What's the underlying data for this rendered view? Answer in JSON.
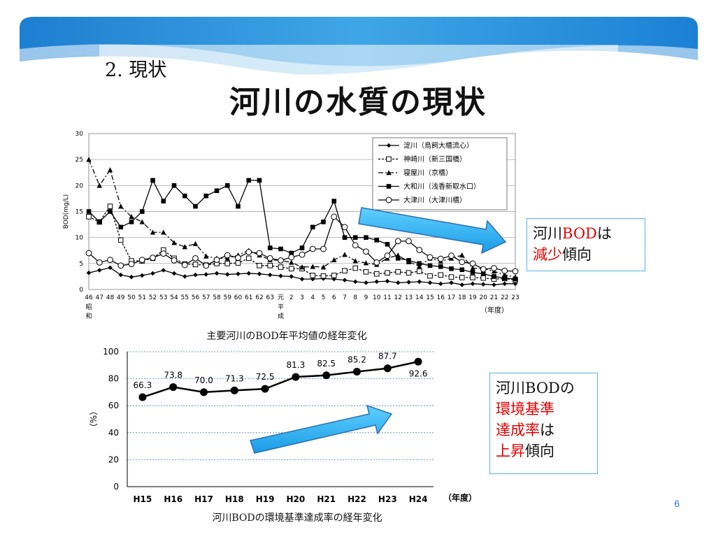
{
  "slide": {
    "section_title": "2. 現状",
    "main_title": "河川の水質の現状",
    "page_number": "6"
  },
  "captions": {
    "chart1": "主要河川のBOD年平均値の経年変化",
    "chart2": "河川BODの環境基準達成率の経年変化"
  },
  "notes": {
    "note1": {
      "l1a": "河川",
      "l1b": "BOD",
      "l1c": "は",
      "l2a": "減少",
      "l2b": "傾向"
    },
    "note2": {
      "l1": "河川BODの",
      "l2": "環境基準",
      "l3a": "達成率",
      "l3b": "は",
      "l4a": "上昇",
      "l4b": "傾向"
    }
  },
  "chart_data": [
    {
      "type": "line",
      "ylabel": "BOD(mg/L)",
      "xlabel": "（年度）",
      "ylim": [
        0,
        30
      ],
      "yticks": [
        0,
        5,
        10,
        15,
        20,
        25,
        30
      ],
      "grid": true,
      "legend_position": "top-right",
      "categories": [
        "46",
        "47",
        "48",
        "49",
        "50",
        "51",
        "52",
        "53",
        "54",
        "55",
        "56",
        "57",
        "58",
        "59",
        "60",
        "61",
        "62",
        "63",
        "元",
        "2",
        "3",
        "4",
        "5",
        "6",
        "7",
        "8",
        "9",
        "10",
        "11",
        "12",
        "13",
        "14",
        "15",
        "16",
        "17",
        "18",
        "19",
        "20",
        "21",
        "22",
        "23"
      ],
      "era_labels": [
        {
          "category": "46",
          "lines": [
            "昭",
            "和"
          ]
        },
        {
          "category": "元",
          "lines": [
            "平",
            "成"
          ]
        }
      ],
      "series": [
        {
          "name": "淀川（鳥飼大橋流心）",
          "marker": "diamond",
          "dash": "solid",
          "values": [
            3.2,
            3.7,
            4.2,
            2.8,
            2.4,
            2.7,
            3.1,
            3.7,
            3.1,
            2.5,
            2.8,
            2.9,
            3.1,
            2.9,
            3.0,
            3.1,
            3.0,
            2.8,
            2.6,
            2.5,
            2.0,
            2.0,
            2.1,
            2.0,
            1.8,
            1.5,
            1.3,
            1.5,
            1.6,
            1.3,
            1.4,
            1.5,
            1.3,
            1.1,
            1.3,
            0.9,
            1.1,
            1.0,
            0.9,
            1.1,
            1.1
          ]
        },
        {
          "name": "神崎川（新三国橋）",
          "marker": "square-open",
          "dash": "dotted",
          "values": [
            14,
            13,
            16,
            9.5,
            5.5,
            5.5,
            6.0,
            7.6,
            6.0,
            4.9,
            4.8,
            4.7,
            5.0,
            5.0,
            5.1,
            6.0,
            4.6,
            4.6,
            4.3,
            4.0,
            4.0,
            2.7,
            2.6,
            2.7,
            3.6,
            4.1,
            3.4,
            3.0,
            3.2,
            3.4,
            3.2,
            3.5,
            2.6,
            2.8,
            2.4,
            2.3,
            2.3,
            2.2,
            2.0,
            2.1,
            1.8
          ]
        },
        {
          "name": "寝屋川（京橋）",
          "marker": "triangle",
          "dash": "dashdot",
          "values": [
            25,
            20,
            23,
            16,
            14,
            13,
            11,
            11,
            9,
            8.2,
            8.8,
            6.4,
            6.0,
            6.0,
            6.6,
            7.5,
            6.6,
            5.7,
            5.6,
            5.2,
            4.3,
            4.4,
            4.3,
            5.7,
            6.7,
            5.5,
            5.1,
            4.8,
            6.0,
            6.6,
            5.3,
            4.5,
            6.0,
            5.4,
            6.0,
            6.6,
            4.1,
            4.0,
            3.5,
            2.8,
            2.4
          ]
        },
        {
          "name": "大和川（浅香新取水口）",
          "marker": "square",
          "dash": "solid",
          "values": [
            15,
            13,
            15,
            12,
            13,
            15,
            21,
            17,
            20,
            18,
            16,
            18,
            19,
            20,
            16,
            21,
            21,
            8,
            7.8,
            7,
            8,
            12,
            13,
            17,
            10,
            10,
            10,
            9.5,
            8.7,
            6,
            5.6,
            5.0,
            4.6,
            4.4,
            4.0,
            3.8,
            3.3,
            3.0,
            2.5,
            2.2,
            2.0
          ]
        },
        {
          "name": "大津川（大津川橋）",
          "marker": "circle-open",
          "dash": "solid",
          "values": [
            7.0,
            5.2,
            5.7,
            4.6,
            4.9,
            5.7,
            6.1,
            6.9,
            5.6,
            4.7,
            6.0,
            4.6,
            5.7,
            6.6,
            6.1,
            7.2,
            7.0,
            6.0,
            5.6,
            6.2,
            6.7,
            7.8,
            7.8,
            14,
            12,
            8.5,
            7.3,
            5.2,
            6.5,
            9.3,
            9.3,
            7.6,
            6.2,
            5.9,
            6.5,
            5.3,
            5.0,
            3.9,
            4.1,
            3.6,
            3.5
          ]
        }
      ]
    },
    {
      "type": "line",
      "ylabel": "（%）",
      "xlabel": "（年度）",
      "ylim": [
        0,
        100
      ],
      "yticks": [
        0,
        20,
        40,
        60,
        80,
        100
      ],
      "grid": true,
      "categories": [
        "H15",
        "H16",
        "H17",
        "H18",
        "H19",
        "H20",
        "H21",
        "H22",
        "H23",
        "H24"
      ],
      "series": [
        {
          "values": [
            66.3,
            73.8,
            70.0,
            71.3,
            72.5,
            81.3,
            82.5,
            85.2,
            87.7,
            92.6
          ]
        }
      ],
      "data_labels": [
        "66.3",
        "73.8",
        "70.0",
        "71.3",
        "72.5",
        "81.3",
        "82.5",
        "85.2",
        "87.7",
        "92.6"
      ]
    }
  ]
}
